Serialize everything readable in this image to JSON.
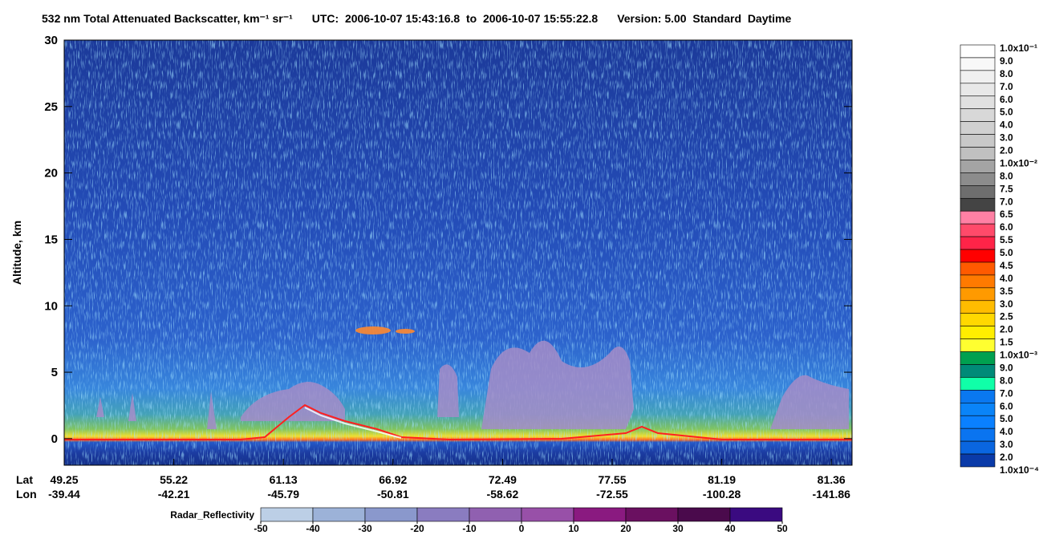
{
  "chart_data": {
    "type": "heatmap",
    "title": [
      "532 nm Total Attenuated Backscatter, km⁻¹ sr⁻¹",
      "UTC:  2006-10-07 15:43:16.8  to  2006-10-07 15:55:22.8",
      "Version: 5.00  Standard  Daytime"
    ],
    "ylabel": "Altitude, km",
    "ylim": [
      -2,
      30
    ],
    "yticks": [
      0,
      5,
      10,
      15,
      20,
      25,
      30
    ],
    "x_rows": [
      {
        "name": "Lat",
        "values": [
          "49.25",
          "55.22",
          "61.13",
          "66.92",
          "72.49",
          "77.55",
          "81.19",
          "81.36"
        ]
      },
      {
        "name": "Lon",
        "values": [
          "-39.44",
          "-42.21",
          "-45.79",
          "-50.81",
          "-58.62",
          "-72.55",
          "-100.28",
          "-141.86"
        ]
      }
    ],
    "colorbar": {
      "labels": [
        "1.0x10⁻¹",
        "9.0",
        "8.0",
        "7.0",
        "6.0",
        "5.0",
        "4.0",
        "3.0",
        "2.0",
        "1.0x10⁻²",
        "8.0",
        "7.5",
        "7.0",
        "6.5",
        "6.0",
        "5.5",
        "5.0",
        "4.5",
        "4.0",
        "3.5",
        "3.0",
        "2.5",
        "2.0",
        "1.5",
        "1.0x10⁻³",
        "9.0",
        "8.0",
        "7.0",
        "6.0",
        "5.0",
        "4.0",
        "3.0",
        "2.0",
        "1.0x10⁻⁴"
      ],
      "colors": [
        "#ffffff",
        "#f8f8f8",
        "#f0f0f0",
        "#e8e8e8",
        "#e0e0e0",
        "#d8d8d8",
        "#d0d0d0",
        "#c8c8c8",
        "#c0c0c0",
        "#a4a4a4",
        "#8c8c8c",
        "#6e6e6e",
        "#444444",
        "#ff80a4",
        "#ff4a6a",
        "#ff2448",
        "#ff0000",
        "#ff5a00",
        "#ff7a00",
        "#ff9a00",
        "#ffbc00",
        "#ffd800",
        "#ffee00",
        "#ffff30",
        "#00a050",
        "#008a78",
        "#10ffa8",
        "#0a78f0",
        "#0a84f8",
        "#0a80ff",
        "#0a74f0",
        "#0a66e0",
        "#0a3aa8",
        "#06289a"
      ]
    },
    "radar": {
      "label": "Radar_Reflectivity",
      "ticks": [
        -50,
        -40,
        -30,
        -20,
        -10,
        0,
        10,
        20,
        30,
        40,
        50
      ],
      "colors": [
        "#bccfe6",
        "#9cb2d8",
        "#8a98cc",
        "#8a7cc0",
        "#9060b0",
        "#9850a8",
        "#8a1a80",
        "#6a1060",
        "#4a0a4c",
        "#3a0a80"
      ]
    }
  }
}
